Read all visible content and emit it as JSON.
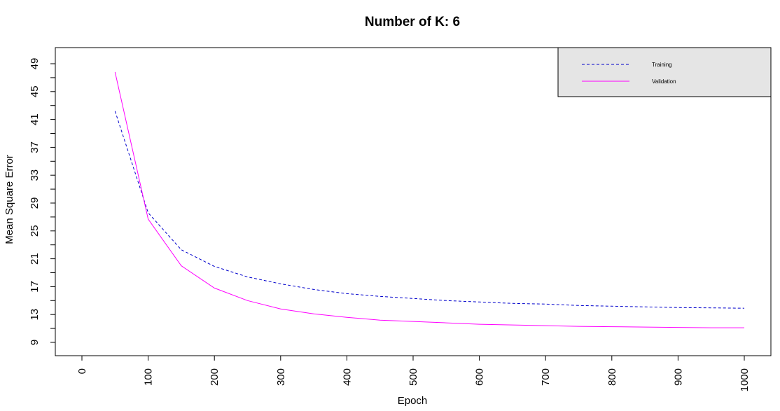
{
  "chart_data": {
    "type": "line",
    "title": "Number of K: 6",
    "xlabel": "Epoch",
    "ylabel": "Mean Square Error",
    "xlim": [
      0,
      1000
    ],
    "ylim": [
      9,
      49
    ],
    "xticks": [
      0,
      100,
      200,
      300,
      400,
      500,
      600,
      700,
      800,
      900,
      1000
    ],
    "yticks": [
      9,
      13,
      17,
      21,
      25,
      29,
      33,
      37,
      41,
      45,
      49
    ],
    "grid": false,
    "legend_position": "top-right",
    "x": [
      50,
      100,
      150,
      200,
      250,
      300,
      350,
      400,
      450,
      500,
      550,
      600,
      650,
      700,
      750,
      800,
      850,
      900,
      950,
      1000
    ],
    "series": [
      {
        "name": "Training",
        "color": "#0000cc",
        "line_style": "dashed",
        "values": [
          42.2,
          27.6,
          22.3,
          19.9,
          18.4,
          17.4,
          16.6,
          16.0,
          15.6,
          15.3,
          15.0,
          14.8,
          14.6,
          14.5,
          14.3,
          14.2,
          14.1,
          14.0,
          13.95,
          13.9
        ]
      },
      {
        "name": "Validation",
        "color": "#ff00ff",
        "line_style": "solid",
        "values": [
          47.8,
          26.7,
          20.0,
          16.8,
          15.0,
          13.8,
          13.1,
          12.6,
          12.2,
          12.0,
          11.8,
          11.6,
          11.5,
          11.4,
          11.3,
          11.25,
          11.2,
          11.15,
          11.1,
          11.1
        ]
      }
    ]
  }
}
